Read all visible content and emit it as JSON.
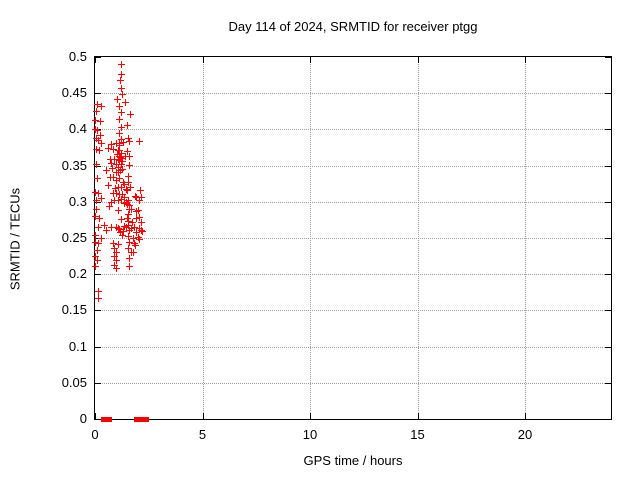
{
  "chart_data": {
    "type": "scatter",
    "title": "Day 114 of 2024, SRMTID for receiver ptgg",
    "xlabel": "GPS time / hours",
    "ylabel": "SRMTID / TECUs",
    "xlim": [
      0,
      24
    ],
    "ylim": [
      0,
      0.5
    ],
    "grid": true,
    "legend": "none",
    "marker": "plus",
    "colors": {
      "marker": "#ff0000",
      "grid": "#9e9e9e",
      "frame": "#000000",
      "background": "#ffffff"
    },
    "xticks": {
      "values": [
        0,
        5,
        10,
        15,
        20
      ],
      "labels": [
        "0",
        "5",
        "10",
        "15",
        "20"
      ]
    },
    "yticks": {
      "values": [
        0,
        0.05,
        0.1,
        0.15,
        0.2,
        0.25,
        0.3,
        0.35,
        0.4,
        0.45,
        0.5
      ],
      "labels": [
        "0",
        "0.05",
        "0.1",
        "0.15",
        "0.2",
        "0.25",
        "0.3",
        "0.35",
        "0.4",
        "0.45",
        "0.5"
      ]
    },
    "points": [
      [
        0.1,
        0.434
      ],
      [
        0.28,
        0.432
      ],
      [
        0.05,
        0.425
      ],
      [
        0.02,
        0.412
      ],
      [
        0.25,
        0.411
      ],
      [
        0.02,
        0.4
      ],
      [
        0.12,
        0.398
      ],
      [
        0.25,
        0.392
      ],
      [
        0.05,
        0.388
      ],
      [
        0.18,
        0.385
      ],
      [
        0.3,
        0.381
      ],
      [
        0.05,
        0.372
      ],
      [
        0.22,
        0.371
      ],
      [
        0.05,
        0.352
      ],
      [
        0.1,
        0.332
      ],
      [
        0.02,
        0.313
      ],
      [
        0.18,
        0.311
      ],
      [
        0.29,
        0.304
      ],
      [
        0.05,
        0.302
      ],
      [
        0.08,
        0.29
      ],
      [
        0.02,
        0.28
      ],
      [
        0.22,
        0.277
      ],
      [
        0.15,
        0.264
      ],
      [
        0.02,
        0.253
      ],
      [
        0.29,
        0.25
      ],
      [
        0.02,
        0.244
      ],
      [
        0.18,
        0.242
      ],
      [
        0.12,
        0.233
      ],
      [
        0.02,
        0.224
      ],
      [
        0.1,
        0.219
      ],
      [
        0.02,
        0.21
      ],
      [
        0.17,
        0.176
      ],
      [
        0.18,
        0.167
      ],
      [
        0.45,
        0.267
      ],
      [
        0.53,
        0.343
      ],
      [
        0.53,
        0.26
      ],
      [
        0.65,
        0.373
      ],
      [
        0.65,
        0.322
      ],
      [
        0.68,
        0.293
      ],
      [
        0.71,
        0.359
      ],
      [
        0.71,
        0.333
      ],
      [
        0.76,
        0.379
      ],
      [
        0.76,
        0.353
      ],
      [
        0.76,
        0.299
      ],
      [
        0.76,
        0.265
      ],
      [
        0.81,
        0.346
      ],
      [
        0.84,
        0.334
      ],
      [
        0.84,
        0.312
      ],
      [
        0.84,
        0.243
      ],
      [
        0.87,
        0.372
      ],
      [
        0.91,
        0.358
      ],
      [
        0.91,
        0.302
      ],
      [
        0.91,
        0.235
      ],
      [
        0.91,
        0.224
      ],
      [
        0.91,
        0.212
      ],
      [
        1.24,
        0.489
      ],
      [
        1.24,
        0.476
      ],
      [
        1.18,
        0.467
      ],
      [
        1.24,
        0.457
      ],
      [
        1.3,
        0.448
      ],
      [
        1.05,
        0.441
      ],
      [
        1.15,
        0.431
      ],
      [
        1.22,
        0.423
      ],
      [
        1.15,
        0.414
      ],
      [
        1.22,
        0.403
      ],
      [
        1.15,
        0.394
      ],
      [
        1.22,
        0.386
      ],
      [
        1.12,
        0.38
      ],
      [
        0.99,
        0.381
      ],
      [
        1.15,
        0.378
      ],
      [
        1.33,
        0.382
      ],
      [
        1.07,
        0.371
      ],
      [
        1.15,
        0.371
      ],
      [
        1.22,
        0.367
      ],
      [
        1.05,
        0.365
      ],
      [
        1.12,
        0.363
      ],
      [
        1.18,
        0.361
      ],
      [
        1.25,
        0.36
      ],
      [
        1.1,
        0.358
      ],
      [
        1.15,
        0.357
      ],
      [
        1.28,
        0.356
      ],
      [
        1.0,
        0.352
      ],
      [
        1.22,
        0.352
      ],
      [
        1.07,
        0.348
      ],
      [
        1.18,
        0.343
      ],
      [
        1.07,
        0.341
      ],
      [
        1.3,
        0.344
      ],
      [
        0.99,
        0.34
      ],
      [
        1.15,
        0.332
      ],
      [
        0.99,
        0.329
      ],
      [
        1.33,
        0.327
      ],
      [
        1.07,
        0.32
      ],
      [
        1.22,
        0.32
      ],
      [
        0.96,
        0.319
      ],
      [
        1.15,
        0.31
      ],
      [
        1.3,
        0.31
      ],
      [
        0.99,
        0.312
      ],
      [
        1.22,
        0.303
      ],
      [
        1.07,
        0.302
      ],
      [
        1.07,
        0.288
      ],
      [
        1.22,
        0.275
      ],
      [
        0.99,
        0.265
      ],
      [
        1.07,
        0.263
      ],
      [
        1.15,
        0.262
      ],
      [
        1.33,
        0.259
      ],
      [
        1.18,
        0.257
      ],
      [
        1.28,
        0.253
      ],
      [
        1.07,
        0.241
      ],
      [
        0.99,
        0.23
      ],
      [
        0.99,
        0.219
      ],
      [
        0.99,
        0.208
      ],
      [
        1.41,
        0.437
      ],
      [
        1.64,
        0.421
      ],
      [
        1.5,
        0.406
      ],
      [
        1.54,
        0.388
      ],
      [
        1.62,
        0.383
      ],
      [
        1.49,
        0.37
      ],
      [
        1.43,
        0.363
      ],
      [
        1.61,
        0.362
      ],
      [
        1.62,
        0.35
      ],
      [
        1.54,
        0.335
      ],
      [
        1.38,
        0.324
      ],
      [
        1.54,
        0.326
      ],
      [
        1.64,
        0.32
      ],
      [
        1.49,
        0.316
      ],
      [
        1.46,
        0.317
      ],
      [
        1.58,
        0.302
      ],
      [
        1.49,
        0.296
      ],
      [
        1.69,
        0.29
      ],
      [
        1.62,
        0.29
      ],
      [
        1.38,
        0.306
      ],
      [
        1.46,
        0.299
      ],
      [
        1.38,
        0.297
      ],
      [
        1.61,
        0.295
      ],
      [
        1.54,
        0.283
      ],
      [
        1.49,
        0.277
      ],
      [
        1.74,
        0.272
      ],
      [
        1.54,
        0.273
      ],
      [
        1.58,
        0.267
      ],
      [
        1.69,
        0.263
      ],
      [
        1.38,
        0.266
      ],
      [
        1.61,
        0.26
      ],
      [
        1.46,
        0.264
      ],
      [
        1.54,
        0.252
      ],
      [
        1.77,
        0.249
      ],
      [
        1.61,
        0.244
      ],
      [
        1.54,
        0.235
      ],
      [
        1.69,
        0.23
      ],
      [
        1.77,
        0.23
      ],
      [
        1.61,
        0.221
      ],
      [
        1.62,
        0.21
      ],
      [
        2.08,
        0.383
      ],
      [
        2.12,
        0.315
      ],
      [
        1.89,
        0.307
      ],
      [
        2.16,
        0.306
      ],
      [
        1.92,
        0.306
      ],
      [
        2.08,
        0.302
      ],
      [
        2.0,
        0.288
      ],
      [
        1.92,
        0.286
      ],
      [
        2.08,
        0.279
      ],
      [
        1.92,
        0.277
      ],
      [
        2.16,
        0.272
      ],
      [
        1.85,
        0.265
      ],
      [
        2.08,
        0.263
      ],
      [
        1.92,
        0.258
      ],
      [
        2.2,
        0.259
      ],
      [
        2.0,
        0.251
      ],
      [
        2.08,
        0.248
      ],
      [
        1.89,
        0.24
      ],
      [
        1.85,
        0.242
      ],
      [
        2.16,
        0.26
      ]
    ],
    "baseline_segments": [
      {
        "x_start": 0.29,
        "x_end": 0.81,
        "y": 0
      },
      {
        "x_start": 1.82,
        "x_end": 2.51,
        "y": 0
      }
    ]
  }
}
